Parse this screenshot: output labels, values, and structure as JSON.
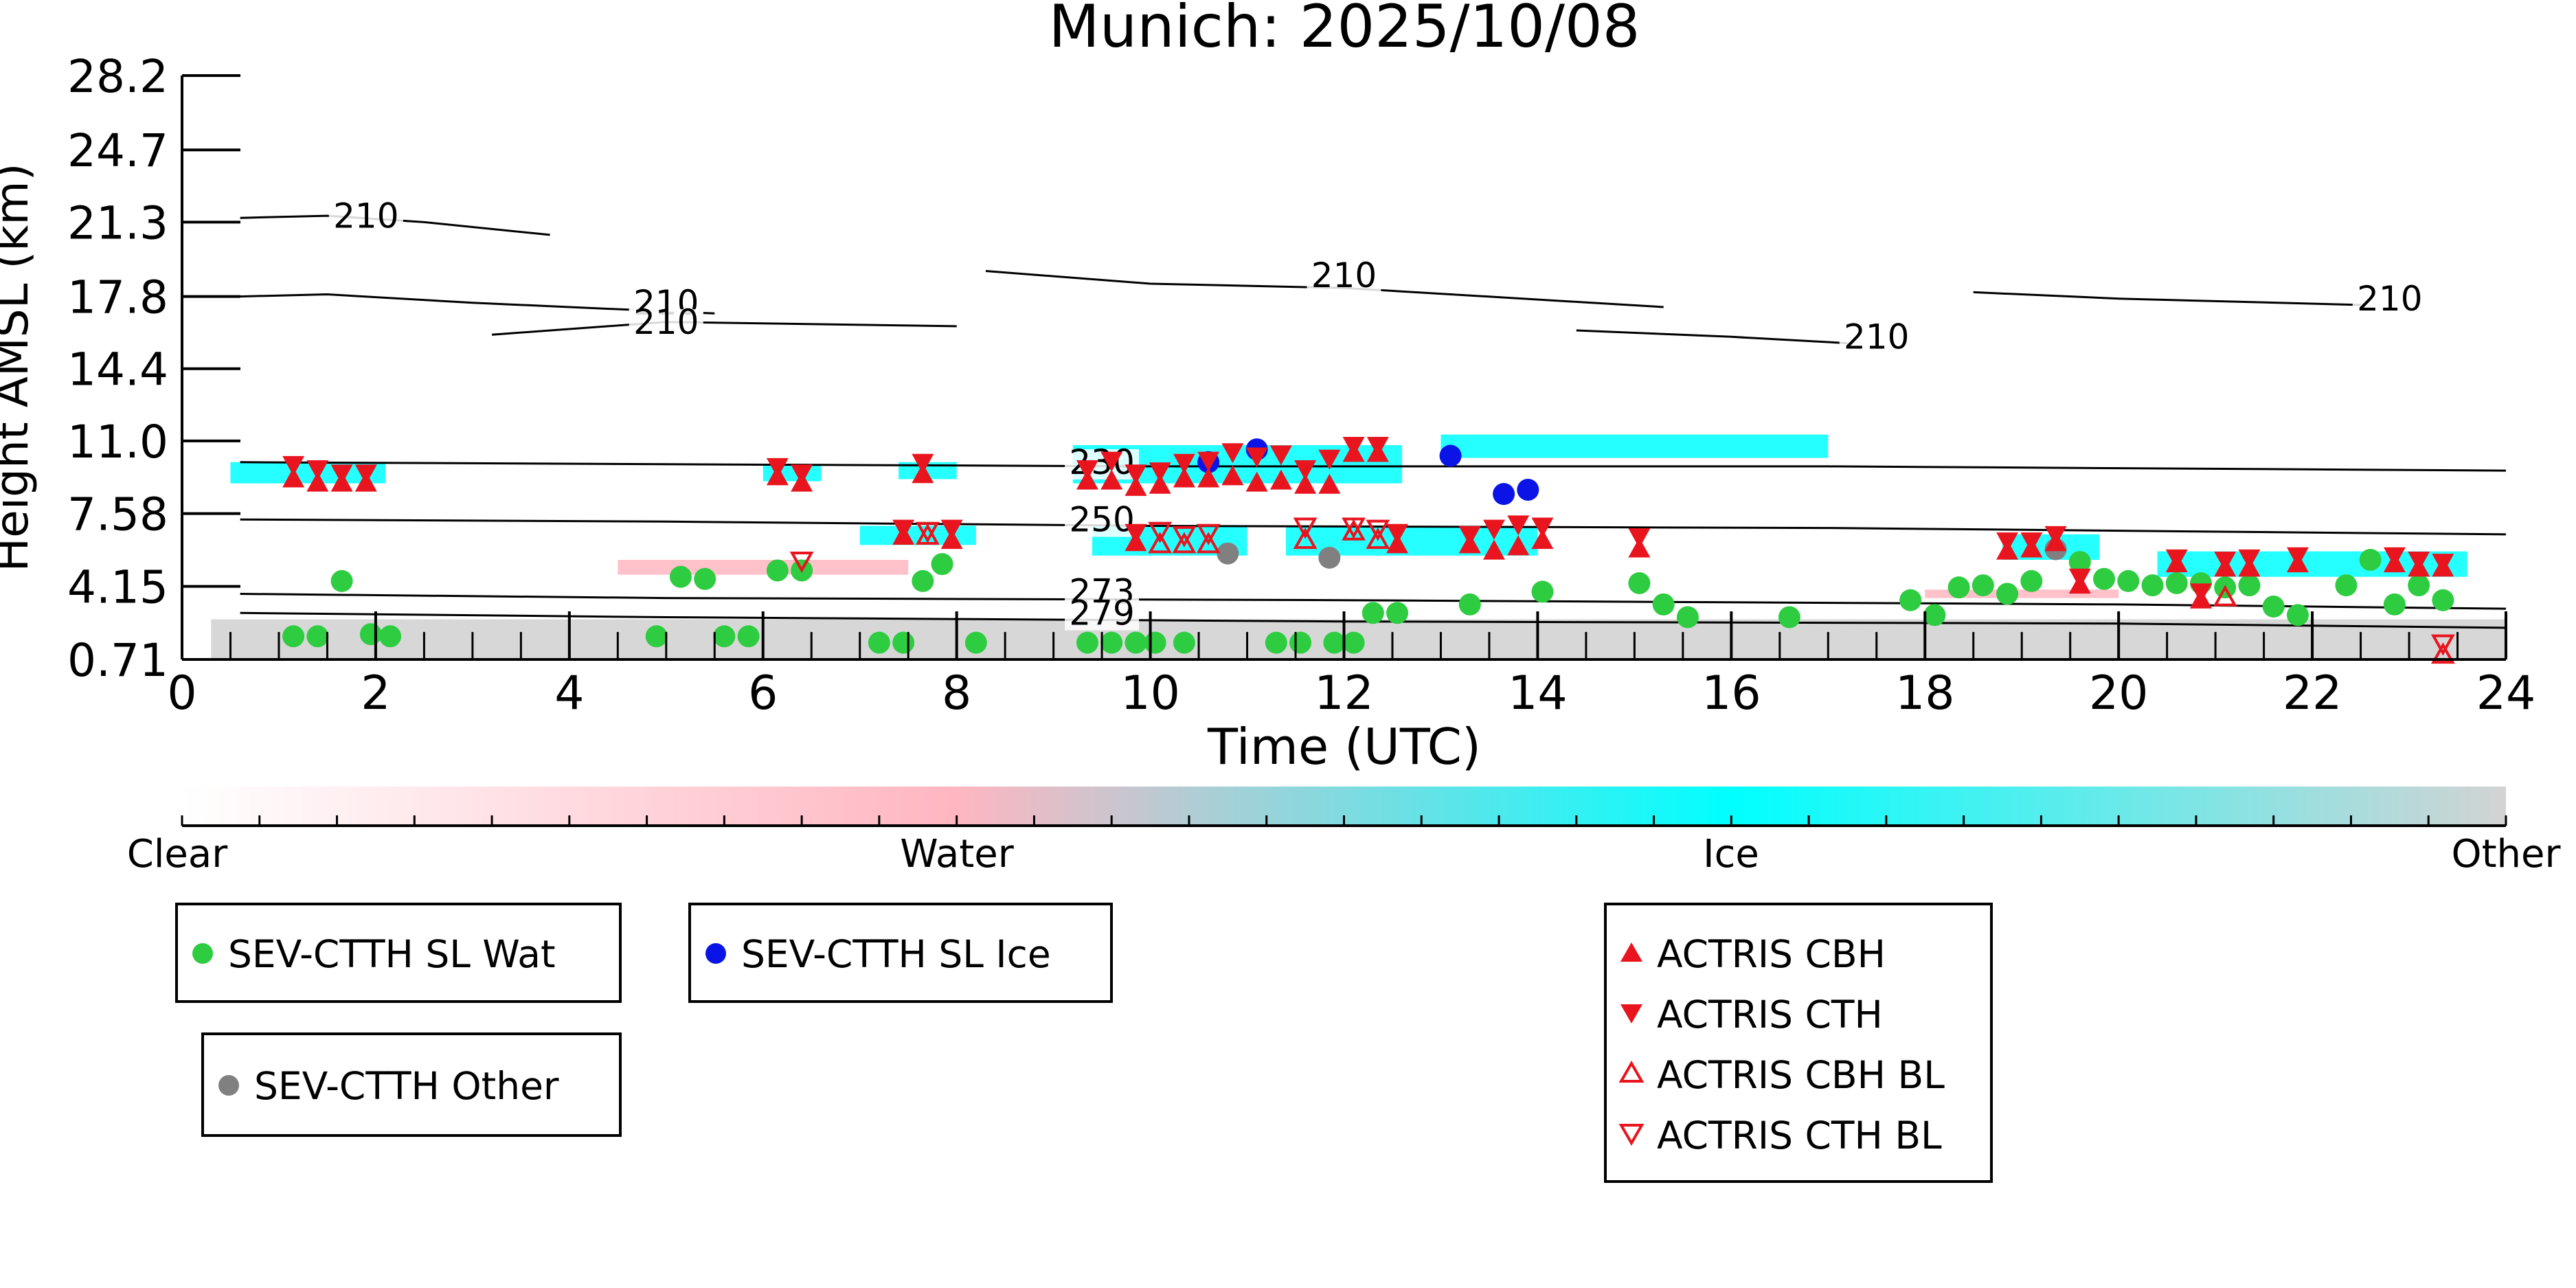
{
  "chart_data": {
    "type": "scatter",
    "title": "Munich: 2025/10/08",
    "xlabel": "Time (UTC)",
    "ylabel": "Height AMSL (km)",
    "xlim": [
      0,
      24
    ],
    "ylim": [
      0.71,
      28.2
    ],
    "xticks": [
      "0",
      "2",
      "4",
      "6",
      "8",
      "10",
      "12",
      "14",
      "16",
      "18",
      "20",
      "22",
      "24"
    ],
    "yticks": [
      "0.71",
      "4.15",
      "7.58",
      "11.0",
      "14.4",
      "17.8",
      "21.3",
      "24.7",
      "28.2"
    ],
    "colorbar": {
      "labels": [
        "Clear",
        "Water",
        "Ice",
        "Other"
      ],
      "colors": [
        "#ffffff",
        "#ffb6c1",
        "#00ffff",
        "#d3d3d3"
      ]
    },
    "contours": [
      {
        "label": "210",
        "label_at": [
          1.9,
          21.3
        ],
        "points": [
          [
            0.6,
            21.5
          ],
          [
            1.5,
            21.6
          ],
          [
            2.5,
            21.3
          ],
          [
            3.8,
            20.7
          ]
        ]
      },
      {
        "label": "210",
        "label_at": [
          5.0,
          17.2
        ],
        "points": [
          [
            0.6,
            17.8
          ],
          [
            1.5,
            17.9
          ],
          [
            3.0,
            17.5
          ],
          [
            5.5,
            17.0
          ]
        ]
      },
      {
        "label": "210",
        "label_at": [
          5.0,
          16.3
        ],
        "points": [
          [
            3.2,
            16.0
          ],
          [
            5.0,
            16.6
          ],
          [
            8.0,
            16.4
          ]
        ]
      },
      {
        "label": "210",
        "label_at": [
          12.0,
          18.5
        ],
        "points": [
          [
            8.3,
            19.0
          ],
          [
            10.0,
            18.4
          ],
          [
            12.0,
            18.2
          ],
          [
            15.3,
            17.3
          ]
        ]
      },
      {
        "label": "210",
        "label_at": [
          17.5,
          15.6
        ],
        "points": [
          [
            14.4,
            16.2
          ],
          [
            16.0,
            15.9
          ],
          [
            17.2,
            15.6
          ]
        ]
      },
      {
        "label": "210",
        "label_at": [
          22.8,
          17.4
        ],
        "points": [
          [
            18.5,
            18.0
          ],
          [
            20.0,
            17.7
          ],
          [
            22.5,
            17.4
          ]
        ]
      },
      {
        "label": "230",
        "label_at": [
          9.5,
          9.7
        ],
        "points": [
          [
            0.6,
            10.0
          ],
          [
            5.0,
            9.9
          ],
          [
            10.0,
            9.8
          ],
          [
            17.0,
            9.8
          ],
          [
            24.0,
            9.6
          ]
        ]
      },
      {
        "label": "250",
        "label_at": [
          9.5,
          7.0
        ],
        "points": [
          [
            0.6,
            7.3
          ],
          [
            5.0,
            7.2
          ],
          [
            10.0,
            7.0
          ],
          [
            17.0,
            6.9
          ],
          [
            24.0,
            6.6
          ]
        ]
      },
      {
        "label": "273",
        "label_at": [
          9.5,
          3.6
        ],
        "points": [
          [
            0.6,
            3.8
          ],
          [
            5.0,
            3.6
          ],
          [
            12.0,
            3.5
          ],
          [
            20.0,
            3.3
          ],
          [
            24.0,
            3.1
          ]
        ]
      },
      {
        "label": "279",
        "label_at": [
          9.5,
          2.6
        ],
        "points": [
          [
            0.6,
            2.9
          ],
          [
            5.0,
            2.7
          ],
          [
            12.0,
            2.5
          ],
          [
            20.0,
            2.4
          ],
          [
            24.0,
            2.2
          ]
        ]
      }
    ],
    "cloud_bands": [
      {
        "class": "Ice",
        "x0": 0.5,
        "x1": 2.1,
        "y0": 9.0,
        "y1": 10.0
      },
      {
        "class": "Ice",
        "x0": 6.0,
        "x1": 6.6,
        "y0": 9.1,
        "y1": 9.9
      },
      {
        "class": "Ice",
        "x0": 7.4,
        "x1": 8.0,
        "y0": 9.2,
        "y1": 10.0
      },
      {
        "class": "Ice",
        "x0": 9.2,
        "x1": 12.6,
        "y0": 9.0,
        "y1": 10.8
      },
      {
        "class": "Ice",
        "x0": 13.0,
        "x1": 17.0,
        "y0": 10.2,
        "y1": 11.3
      },
      {
        "class": "Ice",
        "x0": 7.0,
        "x1": 8.2,
        "y0": 6.1,
        "y1": 7.0
      },
      {
        "class": "Ice",
        "x0": 9.4,
        "x1": 11.0,
        "y0": 5.6,
        "y1": 7.0
      },
      {
        "class": "Ice",
        "x0": 11.4,
        "x1": 14.0,
        "y0": 5.6,
        "y1": 7.0
      },
      {
        "class": "Ice",
        "x0": 18.8,
        "x1": 19.8,
        "y0": 5.4,
        "y1": 6.6
      },
      {
        "class": "Ice",
        "x0": 20.4,
        "x1": 23.6,
        "y0": 4.6,
        "y1": 5.8
      },
      {
        "class": "Water",
        "x0": 4.5,
        "x1": 7.5,
        "y0": 4.7,
        "y1": 5.4
      },
      {
        "class": "Water",
        "x0": 18.0,
        "x1": 20.0,
        "y0": 3.6,
        "y1": 4.0
      },
      {
        "class": "Other",
        "x0": 0.3,
        "x1": 24.0,
        "y0": 0.71,
        "y1": 2.6
      }
    ],
    "series": [
      {
        "name": "SEV-CTTH SL Wat",
        "marker": "circle",
        "color": "#2ecc40",
        "points": [
          [
            1.15,
            1.8
          ],
          [
            1.4,
            1.8
          ],
          [
            1.65,
            4.4
          ],
          [
            1.95,
            1.9
          ],
          [
            2.15,
            1.8
          ],
          [
            4.9,
            1.8
          ],
          [
            5.15,
            4.6
          ],
          [
            5.4,
            4.5
          ],
          [
            5.6,
            1.8
          ],
          [
            5.85,
            1.8
          ],
          [
            6.15,
            4.9
          ],
          [
            6.4,
            4.9
          ],
          [
            7.2,
            1.5
          ],
          [
            7.45,
            1.5
          ],
          [
            7.65,
            4.4
          ],
          [
            7.85,
            5.2
          ],
          [
            8.2,
            1.5
          ],
          [
            9.35,
            1.5
          ],
          [
            9.6,
            1.5
          ],
          [
            9.85,
            1.5
          ],
          [
            10.05,
            1.5
          ],
          [
            10.35,
            1.5
          ],
          [
            11.3,
            1.5
          ],
          [
            11.55,
            1.5
          ],
          [
            11.9,
            1.5
          ],
          [
            12.1,
            1.5
          ],
          [
            12.3,
            2.9
          ],
          [
            12.55,
            2.9
          ],
          [
            13.3,
            3.3
          ],
          [
            14.05,
            3.9
          ],
          [
            15.05,
            4.3
          ],
          [
            15.3,
            3.3
          ],
          [
            15.55,
            2.7
          ],
          [
            16.6,
            2.7
          ],
          [
            17.85,
            3.5
          ],
          [
            18.1,
            2.8
          ],
          [
            18.35,
            4.1
          ],
          [
            18.6,
            4.2
          ],
          [
            18.85,
            3.8
          ],
          [
            19.1,
            4.4
          ],
          [
            19.6,
            5.3
          ],
          [
            19.85,
            4.5
          ],
          [
            20.1,
            4.4
          ],
          [
            20.35,
            4.2
          ],
          [
            20.6,
            4.3
          ],
          [
            20.85,
            4.3
          ],
          [
            21.1,
            4.1
          ],
          [
            21.35,
            4.2
          ],
          [
            21.6,
            3.2
          ],
          [
            21.85,
            2.8
          ],
          [
            22.35,
            4.2
          ],
          [
            22.6,
            5.4
          ],
          [
            22.85,
            3.3
          ],
          [
            23.1,
            4.2
          ],
          [
            23.35,
            3.5
          ]
        ]
      },
      {
        "name": "SEV-CTTH SL Ice",
        "marker": "circle",
        "color": "#0a14e6",
        "points": [
          [
            10.6,
            10.0
          ],
          [
            11.1,
            10.6
          ],
          [
            13.1,
            10.3
          ],
          [
            13.65,
            8.5
          ],
          [
            13.9,
            8.7
          ]
        ]
      },
      {
        "name": "SEV-CTTH Other",
        "marker": "circle",
        "color": "#808080",
        "points": [
          [
            10.8,
            5.7
          ],
          [
            11.85,
            5.5
          ],
          [
            19.35,
            5.9
          ]
        ]
      },
      {
        "name": "ACTRIS CBH",
        "marker": "triangle-up",
        "color": "#e8141e",
        "points": [
          [
            1.15,
            9.2
          ],
          [
            1.4,
            9.0
          ],
          [
            1.65,
            9.0
          ],
          [
            1.9,
            9.0
          ],
          [
            6.15,
            9.3
          ],
          [
            6.4,
            9.0
          ],
          [
            7.65,
            9.4
          ],
          [
            9.35,
            9.1
          ],
          [
            9.6,
            9.1
          ],
          [
            9.85,
            8.8
          ],
          [
            10.1,
            8.9
          ],
          [
            10.35,
            9.2
          ],
          [
            10.6,
            9.2
          ],
          [
            10.85,
            9.3
          ],
          [
            11.1,
            9.0
          ],
          [
            11.35,
            9.1
          ],
          [
            11.6,
            8.9
          ],
          [
            11.85,
            8.9
          ],
          [
            12.1,
            10.4
          ],
          [
            12.35,
            10.4
          ],
          [
            7.45,
            6.5
          ],
          [
            7.95,
            6.3
          ],
          [
            9.85,
            6.2
          ],
          [
            12.55,
            6.1
          ],
          [
            13.3,
            6.1
          ],
          [
            13.55,
            5.8
          ],
          [
            13.8,
            6.0
          ],
          [
            14.05,
            6.3
          ],
          [
            15.05,
            5.9
          ],
          [
            18.85,
            5.8
          ],
          [
            19.1,
            5.9
          ],
          [
            19.35,
            6.2
          ],
          [
            19.6,
            4.2
          ],
          [
            20.85,
            3.5
          ],
          [
            20.6,
            5.2
          ],
          [
            21.1,
            5.0
          ],
          [
            21.35,
            5.0
          ],
          [
            21.85,
            5.2
          ],
          [
            22.85,
            5.2
          ],
          [
            23.1,
            5.0
          ],
          [
            23.35,
            5.0
          ]
        ]
      },
      {
        "name": "ACTRIS CTH",
        "marker": "triangle-down",
        "color": "#e8141e",
        "points": [
          [
            1.15,
            9.9
          ],
          [
            1.4,
            9.7
          ],
          [
            1.65,
            9.5
          ],
          [
            1.9,
            9.5
          ],
          [
            6.15,
            9.8
          ],
          [
            6.4,
            9.5
          ],
          [
            7.65,
            10.0
          ],
          [
            9.35,
            9.7
          ],
          [
            9.6,
            10.1
          ],
          [
            9.85,
            9.5
          ],
          [
            10.1,
            9.6
          ],
          [
            10.35,
            10.0
          ],
          [
            10.6,
            10.1
          ],
          [
            10.85,
            10.5
          ],
          [
            11.1,
            10.3
          ],
          [
            11.35,
            10.4
          ],
          [
            11.6,
            9.7
          ],
          [
            11.85,
            10.2
          ],
          [
            12.1,
            10.8
          ],
          [
            12.35,
            10.8
          ],
          [
            7.45,
            6.9
          ],
          [
            7.95,
            6.9
          ],
          [
            9.85,
            6.7
          ],
          [
            12.55,
            6.7
          ],
          [
            13.3,
            6.6
          ],
          [
            13.55,
            6.9
          ],
          [
            13.8,
            7.1
          ],
          [
            14.05,
            7.0
          ],
          [
            15.05,
            6.5
          ],
          [
            18.85,
            6.3
          ],
          [
            19.1,
            6.3
          ],
          [
            19.35,
            6.6
          ],
          [
            19.6,
            4.6
          ],
          [
            20.85,
            3.9
          ],
          [
            20.6,
            5.5
          ],
          [
            21.1,
            5.4
          ],
          [
            21.35,
            5.5
          ],
          [
            21.85,
            5.6
          ],
          [
            22.85,
            5.6
          ],
          [
            23.1,
            5.4
          ],
          [
            23.35,
            5.3
          ]
        ]
      },
      {
        "name": "ACTRIS CBH BL",
        "marker": "triangle-up-open",
        "color": "#e8141e",
        "points": [
          [
            7.7,
            6.5
          ],
          [
            10.1,
            6.1
          ],
          [
            10.35,
            6.1
          ],
          [
            10.6,
            6.1
          ],
          [
            11.6,
            6.3
          ],
          [
            12.1,
            6.7
          ],
          [
            12.35,
            6.3
          ],
          [
            21.1,
            3.6
          ],
          [
            23.35,
            0.9
          ]
        ]
      },
      {
        "name": "ACTRIS CTH BL",
        "marker": "triangle-down-open",
        "color": "#e8141e",
        "points": [
          [
            7.7,
            6.8
          ],
          [
            10.1,
            6.8
          ],
          [
            10.35,
            6.6
          ],
          [
            10.6,
            6.7
          ],
          [
            11.6,
            7.0
          ],
          [
            12.1,
            7.0
          ],
          [
            12.35,
            6.9
          ],
          [
            6.4,
            5.4
          ],
          [
            23.35,
            1.5
          ]
        ]
      }
    ],
    "legends": [
      {
        "entries": [
          "SEV-CTTH SL Wat"
        ]
      },
      {
        "entries": [
          "SEV-CTTH SL Ice"
        ]
      },
      {
        "entries": [
          "SEV-CTTH Other"
        ]
      },
      {
        "entries": [
          "ACTRIS CBH",
          "ACTRIS CTH",
          "ACTRIS CBH BL",
          "ACTRIS CTH BL"
        ]
      }
    ]
  }
}
